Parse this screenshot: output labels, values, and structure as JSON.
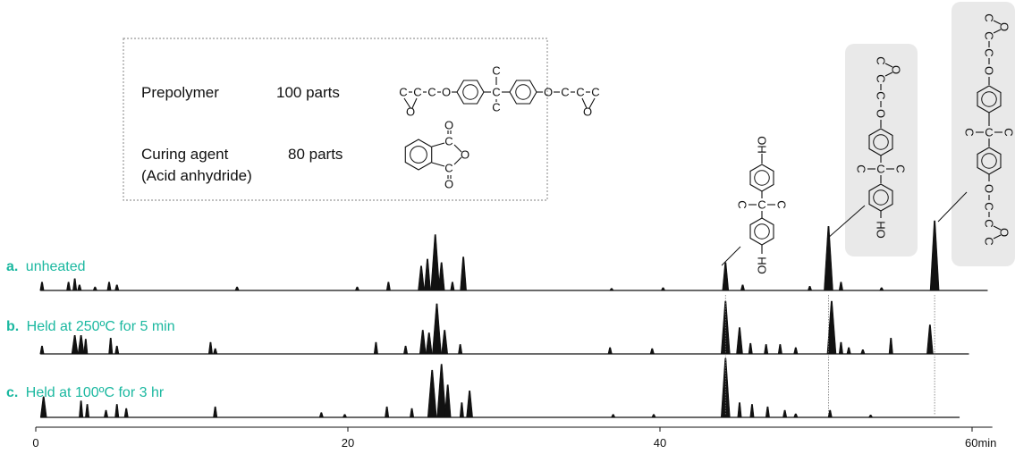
{
  "colors": {
    "trace": "#111111",
    "label_accent": "#1bb8a0",
    "structure_box": "#e9e9e9",
    "legend_border": "#999999"
  },
  "legend": {
    "rows": [
      {
        "name": "Prepolymer",
        "amount": "100 parts",
        "structure": "diglycidyl-ether-bisphenol-a"
      },
      {
        "name": "Curing agent",
        "name_line2": "(Acid anhydride)",
        "amount": "80 parts",
        "structure": "phthalic-anhydride"
      }
    ]
  },
  "chart_data": {
    "type": "line",
    "x_unit": "min",
    "xlim": [
      0,
      61
    ],
    "x_ticks": [
      {
        "value": 0,
        "label": "0"
      },
      {
        "value": 20,
        "label": "20"
      },
      {
        "value": 40,
        "label": "40"
      },
      {
        "value": 60,
        "label": "60min"
      }
    ],
    "grid": false,
    "y_axis": "none",
    "series": [
      {
        "letter": "a.",
        "name": "unheated",
        "peaks": [
          [
            0.4,
            0.12
          ],
          [
            2.1,
            0.12
          ],
          [
            2.5,
            0.17
          ],
          [
            2.8,
            0.08
          ],
          [
            3.8,
            0.05
          ],
          [
            4.7,
            0.12
          ],
          [
            5.2,
            0.08
          ],
          [
            12.9,
            0.05
          ],
          [
            20.6,
            0.05
          ],
          [
            22.6,
            0.12
          ],
          [
            24.7,
            0.35
          ],
          [
            25.1,
            0.45
          ],
          [
            25.6,
            0.8
          ],
          [
            26.0,
            0.4
          ],
          [
            26.7,
            0.12
          ],
          [
            27.4,
            0.48
          ],
          [
            36.9,
            0.03
          ],
          [
            40.2,
            0.04
          ],
          [
            44.2,
            0.4
          ],
          [
            45.3,
            0.08
          ],
          [
            49.6,
            0.06
          ],
          [
            50.8,
            0.92
          ],
          [
            51.6,
            0.12
          ],
          [
            54.2,
            0.04
          ],
          [
            57.6,
            1.0
          ]
        ]
      },
      {
        "letter": "b.",
        "name": "Held at 250ºC for 5 min",
        "peaks": [
          [
            0.4,
            0.15
          ],
          [
            2.5,
            0.35
          ],
          [
            2.9,
            0.35
          ],
          [
            3.2,
            0.28
          ],
          [
            4.8,
            0.3
          ],
          [
            5.2,
            0.15
          ],
          [
            11.2,
            0.22
          ],
          [
            11.5,
            0.1
          ],
          [
            21.8,
            0.22
          ],
          [
            23.7,
            0.15
          ],
          [
            24.8,
            0.45
          ],
          [
            25.2,
            0.4
          ],
          [
            25.7,
            0.95
          ],
          [
            26.2,
            0.45
          ],
          [
            27.2,
            0.18
          ],
          [
            36.8,
            0.12
          ],
          [
            39.5,
            0.1
          ],
          [
            44.2,
            1.0
          ],
          [
            45.1,
            0.5
          ],
          [
            45.8,
            0.2
          ],
          [
            46.8,
            0.18
          ],
          [
            47.7,
            0.18
          ],
          [
            48.7,
            0.12
          ],
          [
            51.0,
            1.0
          ],
          [
            51.6,
            0.22
          ],
          [
            52.1,
            0.12
          ],
          [
            53.0,
            0.08
          ],
          [
            54.8,
            0.3
          ],
          [
            57.3,
            0.55
          ]
        ]
      },
      {
        "letter": "c.",
        "name": "Held at 100ºC for 3 hr",
        "peaks": [
          [
            0.5,
            0.35
          ],
          [
            2.9,
            0.28
          ],
          [
            3.3,
            0.22
          ],
          [
            4.5,
            0.12
          ],
          [
            5.2,
            0.22
          ],
          [
            5.8,
            0.15
          ],
          [
            11.5,
            0.18
          ],
          [
            18.3,
            0.08
          ],
          [
            19.8,
            0.05
          ],
          [
            22.5,
            0.18
          ],
          [
            24.1,
            0.15
          ],
          [
            25.4,
            0.8
          ],
          [
            26.0,
            0.9
          ],
          [
            26.4,
            0.55
          ],
          [
            27.3,
            0.25
          ],
          [
            27.8,
            0.45
          ],
          [
            37.0,
            0.05
          ],
          [
            39.6,
            0.05
          ],
          [
            44.2,
            1.0
          ],
          [
            45.1,
            0.25
          ],
          [
            45.9,
            0.22
          ],
          [
            46.9,
            0.18
          ],
          [
            48.0,
            0.12
          ],
          [
            48.7,
            0.06
          ],
          [
            50.9,
            0.12
          ],
          [
            53.5,
            0.04
          ]
        ]
      }
    ],
    "annotated_peaks": [
      {
        "x": 44.2,
        "structure": "bisphenol-a"
      },
      {
        "x": 50.8,
        "structure": "bisphenol-a-monoglycidyl-ether"
      },
      {
        "x": 57.6,
        "structure": "bisphenol-a-diglycidyl-ether"
      }
    ],
    "structure_atoms": {
      "carbon": "C",
      "oxygen": "O",
      "hydroxyl": "HO",
      "hydroxyl_right": "OH"
    }
  }
}
